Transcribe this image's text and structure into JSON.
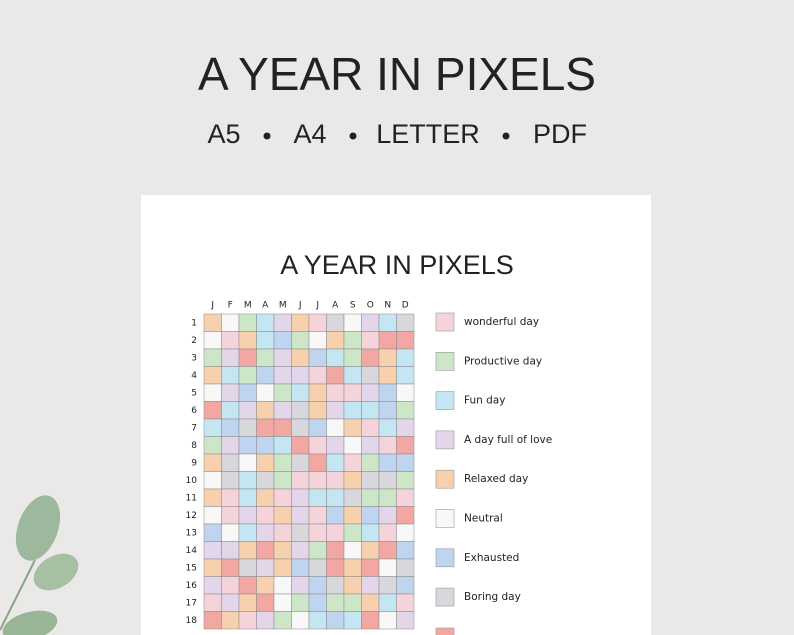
{
  "header": {
    "title": "A YEAR IN PIXELS",
    "formats": [
      "A5",
      "A4",
      "LETTER",
      "PDF"
    ]
  },
  "sheet": {
    "title": "A YEAR IN PIXELS",
    "months": [
      "J",
      "F",
      "M",
      "A",
      "M",
      "J",
      "J",
      "A",
      "S",
      "O",
      "N",
      "D"
    ],
    "days": [
      1,
      2,
      3,
      4,
      5,
      6,
      7,
      8,
      9,
      10,
      11,
      12,
      13,
      14,
      15,
      16,
      17,
      18
    ],
    "legend": [
      {
        "label": "wonderful day",
        "color": "#f5d3da"
      },
      {
        "label": "Productive day",
        "color": "#cde6c8"
      },
      {
        "label": "Fun day",
        "color": "#c4e6f2"
      },
      {
        "label": "A day full of love",
        "color": "#e3d5ea"
      },
      {
        "label": "Relaxed day",
        "color": "#f7d1ad"
      },
      {
        "label": "Neutral",
        "color": "#f8f8f8"
      },
      {
        "label": "Exhausted",
        "color": "#bfd4ef"
      },
      {
        "label": "Boring day",
        "color": "#d8d8dc"
      }
    ]
  }
}
